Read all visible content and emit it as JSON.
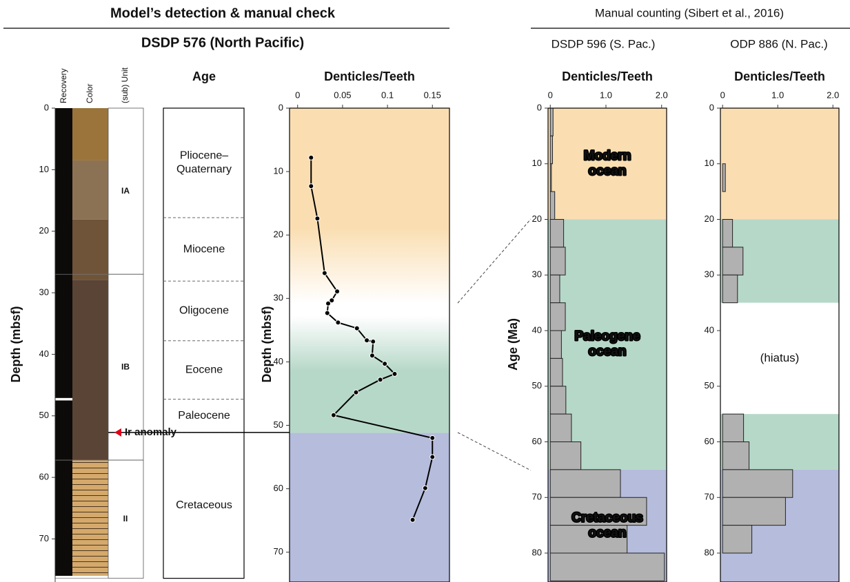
{
  "headers": {
    "left": "Model’s detection & manual check",
    "right": "Manual counting (Sibert et al., 2016)",
    "site_left": "DSDP 576 (North Pacific)",
    "site_mid": "DSDP 596 (S. Pac.)",
    "site_right": "ODP 886 (N. Pac.)"
  },
  "chart_data": [
    {
      "type": "column",
      "ylabel": "Depth (mbsf)",
      "ylim": [
        0,
        77
      ],
      "yticks": [
        0,
        10,
        20,
        30,
        40,
        50,
        60,
        70
      ],
      "column_labels": {
        "recovery": "Recovery",
        "color": "Color",
        "unit": "(sub) Unit",
        "age": "Age"
      },
      "recovery": [
        {
          "from": 0,
          "to": 47.1
        },
        {
          "from": 47.5,
          "to": 76.0
        }
      ],
      "colors": [
        {
          "from": 0,
          "to": 8.5,
          "color": "#9a743a"
        },
        {
          "from": 8.5,
          "to": 18.1,
          "color": "#8c7255"
        },
        {
          "from": 18.1,
          "to": 27.9,
          "color": "#6f5439"
        },
        {
          "from": 27.9,
          "to": 57.2,
          "color": "#5a4435"
        },
        {
          "from": 57.2,
          "to": 76.0,
          "color": "#d4a96b",
          "hatched": true
        }
      ],
      "units": [
        {
          "name": "IA",
          "from": 0,
          "to": 27.0
        },
        {
          "name": "IB",
          "from": 27.0,
          "to": 57.2
        },
        {
          "name": "II",
          "from": 57.2,
          "to": 76.4
        }
      ],
      "ages": [
        {
          "name": [
            "Pliocene–",
            "Quaternary"
          ],
          "from": 0,
          "to": 17.8
        },
        {
          "name": [
            "Miocene"
          ],
          "from": 17.8,
          "to": 28.1
        },
        {
          "name": [
            "Oligocene"
          ],
          "from": 28.1,
          "to": 37.8
        },
        {
          "name": [
            "Eocene"
          ],
          "from": 37.8,
          "to": 47.3
        },
        {
          "name": [
            "Paleocene"
          ],
          "from": 47.3,
          "to": 52.7
        },
        {
          "name": [
            "Cretaceous"
          ],
          "from": 52.7,
          "to": 76.4
        }
      ],
      "annotation": {
        "text": "Ir anomaly",
        "depth": 52.7,
        "color": "#e0001b"
      }
    },
    {
      "type": "line",
      "title": "Denticles/Teeth",
      "ylabel": "Depth (mbsf)",
      "color": "#000000",
      "xlim": [
        -0.009,
        0.169
      ],
      "xticks": [
        0,
        0.05,
        0.1,
        0.15
      ],
      "ylim": [
        0,
        74.7
      ],
      "yticks": [
        0,
        10,
        20,
        30,
        40,
        50,
        60,
        70
      ],
      "boundary": 51.2,
      "boundary_color": "#b5bcdc",
      "depth": [
        7.8,
        12.3,
        17.4,
        26.0,
        28.9,
        30.3,
        30.8,
        32.3,
        33.8,
        34.7,
        36.6,
        36.8,
        39.0,
        40.3,
        41.9,
        42.8,
        44.8,
        48.4,
        52.0,
        55.0,
        59.9,
        64.9
      ],
      "values": [
        0.015,
        0.015,
        0.022,
        0.03,
        0.044,
        0.038,
        0.034,
        0.033,
        0.045,
        0.066,
        0.077,
        0.084,
        0.083,
        0.097,
        0.108,
        0.092,
        0.065,
        0.04,
        0.15,
        0.15,
        0.142,
        0.128
      ]
    },
    {
      "type": "histogram",
      "title": "Denticles/Teeth",
      "ylabel": "Age (Ma)",
      "color": "#b1b1b1",
      "xlim": [
        -0.04,
        2.09
      ],
      "xticks": [
        0,
        {
          "value": 1,
          "label": "1.0"
        },
        {
          "value": 2,
          "label": "2.0"
        }
      ],
      "ylim": [
        0,
        85.2
      ],
      "yticks": [
        0,
        10,
        20,
        30,
        40,
        50,
        60,
        70,
        80
      ],
      "bins": [
        0,
        5,
        10,
        15,
        20,
        25,
        30,
        35,
        40,
        45,
        50,
        55,
        60,
        65,
        70,
        75,
        80,
        85
      ],
      "values": [
        0.05,
        0.04,
        0.02,
        0.08,
        0.24,
        0.27,
        0.17,
        0.27,
        0.2,
        0.22,
        0.28,
        0.38,
        0.55,
        1.26,
        1.73,
        1.38,
        2.05
      ],
      "zones": [
        {
          "from": 0,
          "to": 20,
          "color": "#fadeb2",
          "label": [
            "Modern",
            "ocean"
          ]
        },
        {
          "from": 20,
          "to": 65,
          "color": "#b6d8c8",
          "label": [
            "Paleogene",
            "ocean"
          ]
        },
        {
          "from": 65,
          "to": 85.2,
          "color": "#b5bcdc",
          "label": [
            "Cretaceous",
            "ocean"
          ]
        }
      ]
    },
    {
      "type": "histogram",
      "title": "Denticles/Teeth",
      "color": "#b1b1b1",
      "xlim": [
        -0.04,
        2.11
      ],
      "xticks": [
        0,
        {
          "value": 1,
          "label": "1.0"
        },
        {
          "value": 2,
          "label": "2.0"
        }
      ],
      "ylim": [
        0,
        85.2
      ],
      "yticks": [
        0,
        10,
        20,
        30,
        40,
        50,
        60,
        70,
        80
      ],
      "bins": [
        0,
        5,
        10,
        15,
        20,
        25,
        30,
        35,
        40,
        45,
        50,
        55,
        60,
        65,
        70,
        75,
        80
      ],
      "values": [
        null,
        null,
        0.05,
        null,
        0.18,
        0.37,
        0.27,
        null,
        null,
        null,
        null,
        0.38,
        0.48,
        1.27,
        1.14,
        0.53
      ],
      "zones": [
        {
          "from": 0,
          "to": 20,
          "color": "#fadeb2"
        },
        {
          "from": 20,
          "to": 35,
          "color": "#b6d8c8"
        },
        {
          "from": 35,
          "to": 55,
          "color": "#ffffff",
          "label": [
            "(hiatus)"
          ]
        },
        {
          "from": 55,
          "to": 65,
          "color": "#b6d8c8"
        },
        {
          "from": 65,
          "to": 85.2,
          "color": "#b5bcdc"
        }
      ]
    }
  ]
}
